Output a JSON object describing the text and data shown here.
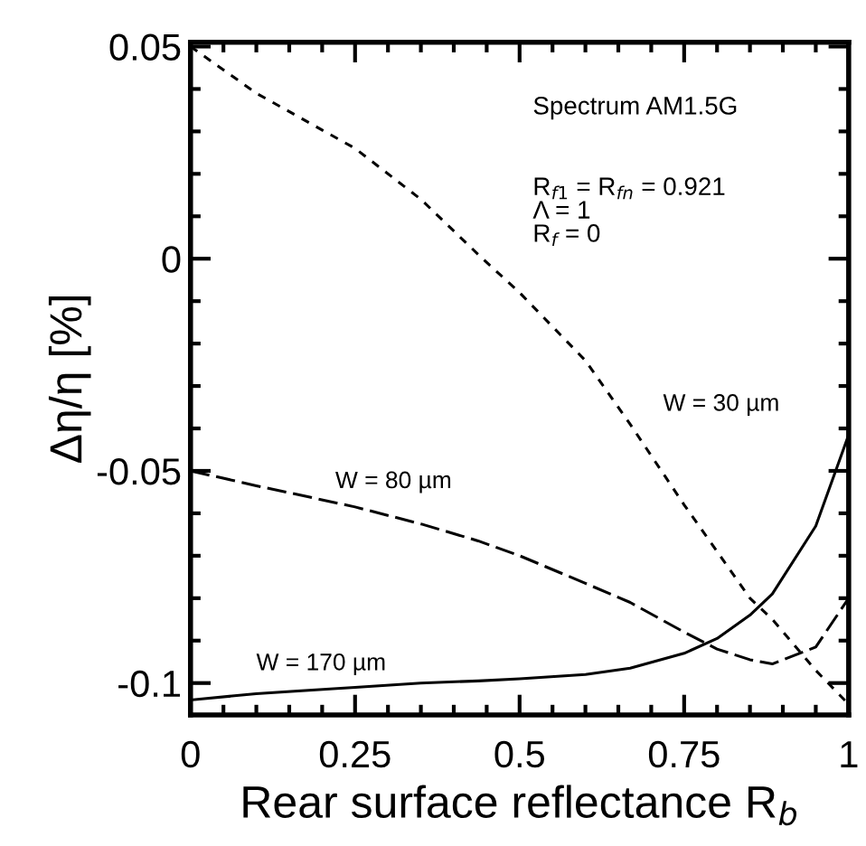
{
  "chart_data": {
    "type": "line",
    "xlabel": "Rear surface reflectance R$_{b}$",
    "ylabel": "Δη/η [%]",
    "x": [
      0,
      0.1,
      0.25,
      0.35,
      0.437,
      0.5,
      0.6,
      0.668,
      0.75,
      0.8,
      0.85,
      0.884,
      0.95,
      1
    ],
    "series": [
      {
        "name": "W = 30 µm",
        "color": "#000000",
        "line_style": "dotted",
        "values": [
          0.05,
          0.039,
          0.026,
          0.014,
          0.001,
          -0.008,
          -0.024,
          -0.039,
          -0.058,
          -0.069,
          -0.08,
          -0.085,
          -0.097,
          -0.105
        ]
      },
      {
        "name": "W = 80 µm",
        "color": "#000000",
        "line_style": "dashed",
        "values": [
          -0.05,
          -0.0535,
          -0.0585,
          -0.0625,
          -0.0665,
          -0.07,
          -0.0765,
          -0.081,
          -0.088,
          -0.092,
          -0.0945,
          -0.0955,
          -0.0915,
          -0.08
        ]
      },
      {
        "name": "W = 170 µm",
        "color": "#000000",
        "line_style": "solid",
        "values": [
          -0.104,
          -0.1025,
          -0.101,
          -0.1,
          -0.0995,
          -0.099,
          -0.098,
          -0.0965,
          -0.093,
          -0.0895,
          -0.084,
          -0.079,
          -0.063,
          -0.0415
        ]
      }
    ],
    "annotations": [
      "Spectrum AM1.5G",
      "R$_{f1}$ = R$_{fn}$ = 0.921\nΛ = 1\nR$_{f}$ = 0"
    ],
    "xlim": [
      0,
      1
    ],
    "ylim": [
      -0.1075,
      0.051
    ],
    "xticks": [
      0,
      0.25,
      0.5,
      0.75,
      1
    ],
    "yticks": [
      -0.1,
      -0.05,
      0,
      0.05
    ],
    "grid": false,
    "legend": false,
    "marker": "none"
  }
}
